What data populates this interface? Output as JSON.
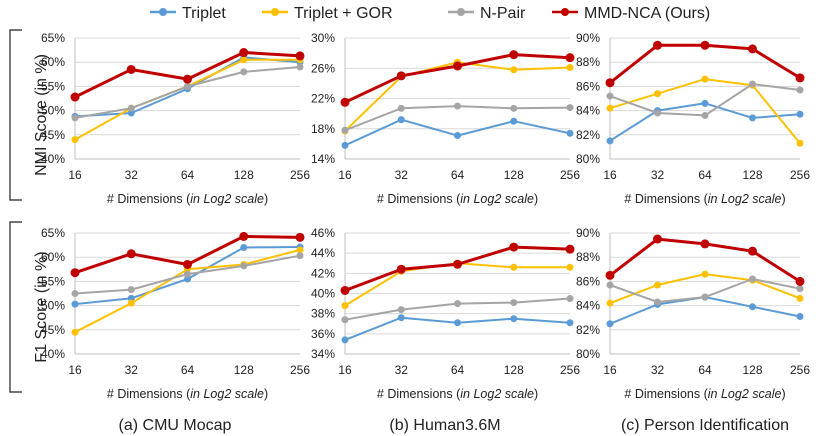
{
  "legend": [
    {
      "name": "Triplet",
      "color": "#5B9BD5"
    },
    {
      "name": "Triplet + GOR",
      "color": "#FFC000"
    },
    {
      "name": "N-Pair",
      "color": "#A5A5A5"
    },
    {
      "name": "MMD-NCA (Ours)",
      "color": "#C00000"
    }
  ],
  "row_labels": {
    "nmi": "NMI Score (in %)",
    "f1": "F1 Score (in %)"
  },
  "captions": [
    "(a) CMU Mocap",
    "(b) Human3.6M",
    "(c) Person Identification"
  ],
  "chart_data": [
    {
      "type": "line",
      "panel": "CMU Mocap",
      "metric": "NMI",
      "title": "",
      "xlabel": "# Dimensions (in Log2 scale)",
      "ylabel": "NMI Score (in %)",
      "categories": [
        "16",
        "32",
        "64",
        "128",
        "256"
      ],
      "ylim": [
        40,
        65
      ],
      "yticks": [
        40,
        45,
        50,
        55,
        60,
        65
      ],
      "series": [
        {
          "name": "Triplet",
          "values": [
            48.8,
            49.5,
            54.5,
            61.0,
            60.0
          ]
        },
        {
          "name": "Triplet + GOR",
          "values": [
            44.0,
            50.5,
            55.0,
            60.5,
            60.5
          ]
        },
        {
          "name": "N-Pair",
          "values": [
            48.5,
            50.5,
            55.0,
            58.0,
            59.0
          ]
        },
        {
          "name": "MMD-NCA (Ours)",
          "values": [
            52.8,
            58.5,
            56.5,
            62.0,
            61.3
          ]
        }
      ]
    },
    {
      "type": "line",
      "panel": "Human3.6M",
      "metric": "NMI",
      "title": "",
      "xlabel": "# Dimensions (in Log2 scale)",
      "ylabel": "NMI Score (in %)",
      "categories": [
        "16",
        "32",
        "64",
        "128",
        "256"
      ],
      "ylim": [
        14,
        30
      ],
      "yticks": [
        14,
        18,
        22,
        26,
        30
      ],
      "series": [
        {
          "name": "Triplet",
          "values": [
            15.8,
            19.2,
            17.1,
            19.0,
            17.4
          ]
        },
        {
          "name": "Triplet + GOR",
          "values": [
            17.7,
            24.9,
            26.8,
            25.8,
            26.1
          ]
        },
        {
          "name": "N-Pair",
          "values": [
            17.8,
            20.7,
            21.0,
            20.7,
            20.8
          ]
        },
        {
          "name": "MMD-NCA (Ours)",
          "values": [
            21.5,
            25.0,
            26.3,
            27.8,
            27.4
          ]
        }
      ]
    },
    {
      "type": "line",
      "panel": "Person Identification",
      "metric": "NMI",
      "title": "",
      "xlabel": "# Dimensions (in Log2 scale)",
      "ylabel": "NMI Score (in %)",
      "categories": [
        "16",
        "32",
        "64",
        "128",
        "256"
      ],
      "ylim": [
        80,
        90
      ],
      "yticks": [
        80,
        82,
        84,
        86,
        88,
        90
      ],
      "series": [
        {
          "name": "Triplet",
          "values": [
            81.5,
            84.0,
            84.6,
            83.4,
            83.7
          ]
        },
        {
          "name": "Triplet + GOR",
          "values": [
            84.2,
            85.4,
            86.6,
            86.1,
            81.3
          ]
        },
        {
          "name": "N-Pair",
          "values": [
            85.2,
            83.8,
            83.6,
            86.2,
            85.7
          ]
        },
        {
          "name": "MMD-NCA (Ours)",
          "values": [
            86.3,
            89.4,
            89.4,
            89.1,
            86.7
          ]
        }
      ]
    },
    {
      "type": "line",
      "panel": "CMU Mocap",
      "metric": "F1",
      "title": "",
      "xlabel": "# Dimensions (in Log2 scale)",
      "ylabel": "F1 Score (in %)",
      "categories": [
        "16",
        "32",
        "64",
        "128",
        "256"
      ],
      "ylim": [
        40,
        65
      ],
      "yticks": [
        40,
        45,
        50,
        55,
        60,
        65
      ],
      "series": [
        {
          "name": "Triplet",
          "values": [
            50.3,
            51.5,
            55.5,
            62.0,
            62.1
          ]
        },
        {
          "name": "Triplet + GOR",
          "values": [
            44.5,
            50.5,
            57.5,
            58.5,
            61.5
          ]
        },
        {
          "name": "N-Pair",
          "values": [
            52.5,
            53.3,
            56.5,
            58.2,
            60.3
          ]
        },
        {
          "name": "MMD-NCA (Ours)",
          "values": [
            56.8,
            60.7,
            58.5,
            64.3,
            64.1
          ]
        }
      ]
    },
    {
      "type": "line",
      "panel": "Human3.6M",
      "metric": "F1",
      "title": "",
      "xlabel": "# Dimensions (in Log2 scale)",
      "ylabel": "F1 Score (in %)",
      "categories": [
        "16",
        "32",
        "64",
        "128",
        "256"
      ],
      "ylim": [
        34,
        46
      ],
      "yticks": [
        34,
        36,
        38,
        40,
        42,
        44,
        46
      ],
      "series": [
        {
          "name": "Triplet",
          "values": [
            35.4,
            37.6,
            37.1,
            37.5,
            37.1
          ]
        },
        {
          "name": "Triplet + GOR",
          "values": [
            38.8,
            42.2,
            43.0,
            42.6,
            42.6
          ]
        },
        {
          "name": "N-Pair",
          "values": [
            37.4,
            38.4,
            39.0,
            39.1,
            39.5
          ]
        },
        {
          "name": "MMD-NCA (Ours)",
          "values": [
            40.3,
            42.4,
            42.9,
            44.6,
            44.4
          ]
        }
      ]
    },
    {
      "type": "line",
      "panel": "Person Identification",
      "metric": "F1",
      "title": "",
      "xlabel": "# Dimensions (in Log2 scale)",
      "ylabel": "F1 Score (in %)",
      "categories": [
        "16",
        "32",
        "64",
        "128",
        "256"
      ],
      "ylim": [
        80,
        90
      ],
      "yticks": [
        80,
        82,
        84,
        86,
        88,
        90
      ],
      "series": [
        {
          "name": "Triplet",
          "values": [
            82.5,
            84.1,
            84.7,
            83.9,
            83.1
          ]
        },
        {
          "name": "Triplet + GOR",
          "values": [
            84.2,
            85.7,
            86.6,
            86.1,
            84.6
          ]
        },
        {
          "name": "N-Pair",
          "values": [
            85.7,
            84.3,
            84.7,
            86.2,
            85.4
          ]
        },
        {
          "name": "MMD-NCA (Ours)",
          "values": [
            86.5,
            89.5,
            89.1,
            88.5,
            86.0
          ]
        }
      ]
    }
  ]
}
